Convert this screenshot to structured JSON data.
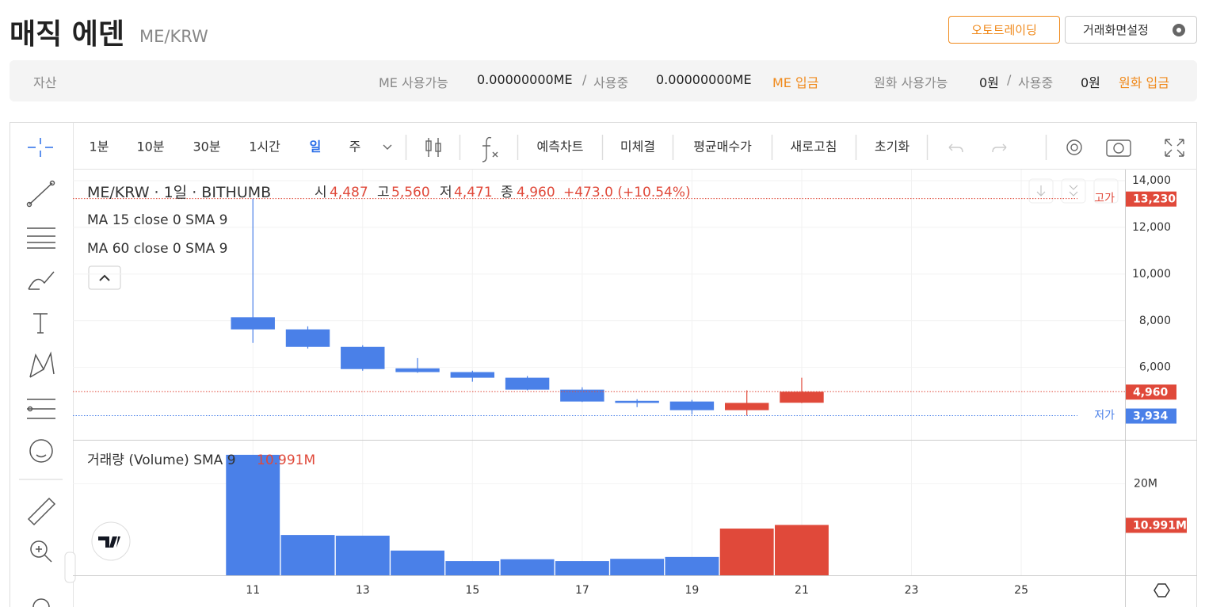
{
  "header": {
    "title": "매직 에덴",
    "pair": "ME/KRW",
    "buttons": [
      "오토트레이딩",
      "거래화면설정"
    ]
  },
  "balance": {
    "label": "자산",
    "coin_available_label": "ME 사용가능",
    "coin_available": "0.00000000ME",
    "separator": "/",
    "coin_in_use_label": "사용중",
    "coin_in_use": "0.00000000ME",
    "coin_deposit": "ME 입금",
    "krw_available_label": "원화 사용가능",
    "krw_available": "0원",
    "krw_in_use_label": "사용중",
    "krw_in_use": "0원",
    "krw_deposit": "원화 입금"
  },
  "toolbar": {
    "intervals": [
      "1분",
      "10분",
      "30분",
      "1시간",
      "일",
      "주"
    ],
    "tools": [
      "예측차트",
      "미체결",
      "평균매수가",
      "새로고침",
      "초기화"
    ]
  },
  "chart_data": [
    {
      "type": "candlestick",
      "title": "ME/KRW · 1일 · BITHUMB",
      "legend": {
        "open_label": "시",
        "open": "4,487",
        "high_label": "고",
        "high": "5,560",
        "low_label": "저",
        "low": "4,471",
        "close_label": "종",
        "close": "4,960",
        "change": "+473.0 (+10.54%)"
      },
      "indicators": [
        "MA 15 close 0 SMA 9",
        "MA 60 close 0 SMA 9"
      ],
      "x": [
        11,
        12,
        13,
        14,
        15,
        16,
        17,
        18,
        19,
        20,
        21
      ],
      "open": [
        8150,
        7630,
        6880,
        5960,
        5800,
        5560,
        5050,
        4570,
        4540,
        4170,
        4487
      ],
      "high": [
        13230,
        7760,
        6950,
        6400,
        5860,
        5630,
        5150,
        4640,
        4610,
        5020,
        5560
      ],
      "low": [
        7050,
        6810,
        5860,
        5770,
        5390,
        5020,
        4520,
        4300,
        3980,
        3934,
        4471
      ],
      "close": [
        7630,
        6880,
        5930,
        5800,
        5560,
        5050,
        4540,
        4480,
        4170,
        4480,
        4960
      ],
      "up_color": "#e0493a",
      "down_color": "#4a80e8",
      "xlim": [
        7.72,
        26.89
      ],
      "ylim": [
        2900,
        14475
      ],
      "yticks": [
        {
          "value": 6000,
          "label": "6,000"
        },
        {
          "value": 8000,
          "label": "8,000"
        },
        {
          "value": 10000,
          "label": "10,000"
        },
        {
          "value": 12000,
          "label": "12,000"
        },
        {
          "value": 14000,
          "label": "14,000"
        }
      ],
      "grid": true,
      "price_lines": [
        {
          "label": "고가",
          "value": 13230,
          "value_label": "13,230",
          "color": "#e0493a"
        },
        {
          "value": 4960,
          "value_label": "4,960",
          "color": "#e0493a"
        },
        {
          "label": "저가",
          "value": 3934,
          "value_label": "3,934",
          "color": "#4a80e8"
        }
      ]
    },
    {
      "type": "bar",
      "title": "거래량 (Volume) SMA 9",
      "x": [
        11,
        12,
        13,
        14,
        15,
        16,
        17,
        18,
        19,
        20,
        21
      ],
      "values": [
        26.3,
        8.8,
        8.65,
        5.4,
        3.1,
        3.5,
        3.1,
        3.6,
        4.0,
        10.2,
        10.991
      ],
      "value_labels": [
        null,
        null,
        null,
        null,
        null,
        null,
        null,
        null,
        null,
        null,
        "10.991M"
      ],
      "colors": [
        "#4a80e8",
        "#4a80e8",
        "#4a80e8",
        "#4a80e8",
        "#4a80e8",
        "#4a80e8",
        "#4a80e8",
        "#4a80e8",
        "#4a80e8",
        "#e0493a",
        "#e0493a"
      ],
      "xlim": [
        7.72,
        26.89
      ],
      "ylim": [
        0,
        29.4
      ],
      "yticks": [
        {
          "value": 20,
          "label": "20M"
        }
      ],
      "xticks": [
        11,
        13,
        15,
        17,
        19,
        21,
        23,
        25
      ],
      "grid": true
    }
  ]
}
